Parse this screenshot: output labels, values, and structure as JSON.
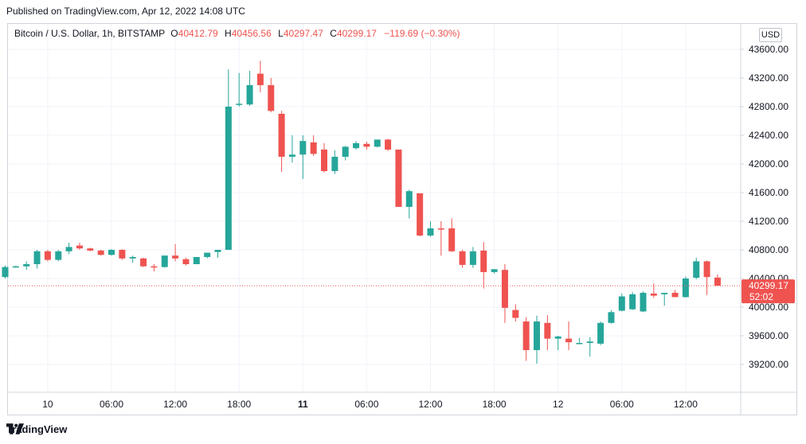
{
  "published_text": "Published on TradingView.com, Apr 12, 2022 14:08 UTC",
  "brand": "TradingView",
  "legend": {
    "symbol": "Bitcoin / U.S. Dollar, 1h, BITSTAMP",
    "o_label": "O",
    "o_value": "40412.79",
    "h_label": "H",
    "h_value": "40456.56",
    "l_label": "L",
    "l_value": "40297.47",
    "c_label": "C",
    "c_value": "40299.17",
    "change": "−119.69 (−0.30%)"
  },
  "currency_badge": "USD",
  "last_price_label": "40299.17",
  "countdown_label": "52:02",
  "colors": {
    "up": "#26a69a",
    "down": "#ef5350",
    "grid": "#f0f3fa",
    "axis_text": "#131722"
  },
  "chart_data": {
    "type": "candlestick",
    "title": "Bitcoin / U.S. Dollar, 1h, BITSTAMP",
    "ylim": [
      38800,
      43900
    ],
    "y_ticks": [
      "43600.00",
      "43200.00",
      "42800.00",
      "42400.00",
      "42000.00",
      "41600.00",
      "41200.00",
      "40800.00",
      "40400.00",
      "40000.00",
      "39600.00",
      "39200.00"
    ],
    "x_tick_labels": [
      "10",
      "06:00",
      "12:00",
      "18:00",
      "11",
      "06:00",
      "12:00",
      "18:00",
      "12",
      "06:00",
      "12:00"
    ],
    "x_tick_bold": [
      false,
      false,
      false,
      false,
      true,
      false,
      false,
      false,
      false,
      false,
      false
    ],
    "x_tick_bar_index": [
      4,
      10,
      16,
      22,
      28,
      34,
      40,
      46,
      52,
      58,
      64
    ],
    "last_price": 40299.17,
    "candles": [
      {
        "o": 40420,
        "h": 40580,
        "l": 40400,
        "c": 40560
      },
      {
        "o": 40560,
        "h": 40580,
        "l": 40550,
        "c": 40570
      },
      {
        "o": 40570,
        "h": 40640,
        "l": 40520,
        "c": 40600
      },
      {
        "o": 40600,
        "h": 40800,
        "l": 40540,
        "c": 40780
      },
      {
        "o": 40780,
        "h": 40800,
        "l": 40640,
        "c": 40660
      },
      {
        "o": 40660,
        "h": 40800,
        "l": 40640,
        "c": 40780
      },
      {
        "o": 40780,
        "h": 40900,
        "l": 40740,
        "c": 40840
      },
      {
        "o": 40860,
        "h": 40900,
        "l": 40800,
        "c": 40820
      },
      {
        "o": 40820,
        "h": 40830,
        "l": 40780,
        "c": 40790
      },
      {
        "o": 40790,
        "h": 40800,
        "l": 40720,
        "c": 40730
      },
      {
        "o": 40730,
        "h": 40810,
        "l": 40720,
        "c": 40800
      },
      {
        "o": 40800,
        "h": 40810,
        "l": 40660,
        "c": 40680
      },
      {
        "o": 40680,
        "h": 40720,
        "l": 40620,
        "c": 40700
      },
      {
        "o": 40680,
        "h": 40690,
        "l": 40560,
        "c": 40570
      },
      {
        "o": 40570,
        "h": 40600,
        "l": 40500,
        "c": 40560
      },
      {
        "o": 40560,
        "h": 40720,
        "l": 40550,
        "c": 40720
      },
      {
        "o": 40720,
        "h": 40880,
        "l": 40640,
        "c": 40680
      },
      {
        "o": 40670,
        "h": 40690,
        "l": 40580,
        "c": 40600
      },
      {
        "o": 40600,
        "h": 40700,
        "l": 40600,
        "c": 40700
      },
      {
        "o": 40700,
        "h": 40760,
        "l": 40680,
        "c": 40760
      },
      {
        "o": 40770,
        "h": 40800,
        "l": 40690,
        "c": 40800
      },
      {
        "o": 40800,
        "h": 43320,
        "l": 40800,
        "c": 42800
      },
      {
        "o": 42830,
        "h": 43270,
        "l": 42800,
        "c": 42840
      },
      {
        "o": 42830,
        "h": 43300,
        "l": 42810,
        "c": 43100
      },
      {
        "o": 43260,
        "h": 43440,
        "l": 43000,
        "c": 43100
      },
      {
        "o": 43100,
        "h": 43200,
        "l": 42720,
        "c": 42740
      },
      {
        "o": 42700,
        "h": 42740,
        "l": 41890,
        "c": 42100
      },
      {
        "o": 42100,
        "h": 42400,
        "l": 42020,
        "c": 42130
      },
      {
        "o": 42130,
        "h": 42400,
        "l": 41790,
        "c": 42320
      },
      {
        "o": 42300,
        "h": 42400,
        "l": 42110,
        "c": 42140
      },
      {
        "o": 42200,
        "h": 42290,
        "l": 41880,
        "c": 41900
      },
      {
        "o": 41900,
        "h": 42190,
        "l": 41860,
        "c": 42100
      },
      {
        "o": 42100,
        "h": 42250,
        "l": 42050,
        "c": 42240
      },
      {
        "o": 42220,
        "h": 42320,
        "l": 42200,
        "c": 42290
      },
      {
        "o": 42280,
        "h": 42310,
        "l": 42200,
        "c": 42240
      },
      {
        "o": 42240,
        "h": 42340,
        "l": 42230,
        "c": 42340
      },
      {
        "o": 42340,
        "h": 42350,
        "l": 42180,
        "c": 42200
      },
      {
        "o": 42200,
        "h": 42200,
        "l": 41400,
        "c": 41400
      },
      {
        "o": 41400,
        "h": 41640,
        "l": 41240,
        "c": 41620
      },
      {
        "o": 41590,
        "h": 41590,
        "l": 40990,
        "c": 41000
      },
      {
        "o": 41000,
        "h": 41200,
        "l": 40980,
        "c": 41100
      },
      {
        "o": 41100,
        "h": 41200,
        "l": 40720,
        "c": 41090
      },
      {
        "o": 41100,
        "h": 41240,
        "l": 40770,
        "c": 40780
      },
      {
        "o": 40780,
        "h": 40800,
        "l": 40550,
        "c": 40590
      },
      {
        "o": 40590,
        "h": 40840,
        "l": 40550,
        "c": 40780
      },
      {
        "o": 40790,
        "h": 40910,
        "l": 40260,
        "c": 40490
      },
      {
        "o": 40490,
        "h": 40520,
        "l": 40470,
        "c": 40530
      },
      {
        "o": 40520,
        "h": 40600,
        "l": 39780,
        "c": 39990
      },
      {
        "o": 39960,
        "h": 40040,
        "l": 39800,
        "c": 39850
      },
      {
        "o": 39800,
        "h": 39860,
        "l": 39250,
        "c": 39400
      },
      {
        "o": 39400,
        "h": 39880,
        "l": 39210,
        "c": 39800
      },
      {
        "o": 39780,
        "h": 39890,
        "l": 39400,
        "c": 39560
      },
      {
        "o": 39560,
        "h": 39600,
        "l": 39400,
        "c": 39590
      },
      {
        "o": 39560,
        "h": 39800,
        "l": 39400,
        "c": 39510
      },
      {
        "o": 39500,
        "h": 39570,
        "l": 39490,
        "c": 39500
      },
      {
        "o": 39500,
        "h": 39580,
        "l": 39310,
        "c": 39520
      },
      {
        "o": 39490,
        "h": 39800,
        "l": 39470,
        "c": 39780
      },
      {
        "o": 39780,
        "h": 39960,
        "l": 39770,
        "c": 39930
      },
      {
        "o": 39950,
        "h": 40190,
        "l": 39940,
        "c": 40150
      },
      {
        "o": 39970,
        "h": 40210,
        "l": 39960,
        "c": 40180
      },
      {
        "o": 39940,
        "h": 40220,
        "l": 39930,
        "c": 40200
      },
      {
        "o": 40190,
        "h": 40330,
        "l": 40130,
        "c": 40160
      },
      {
        "o": 40180,
        "h": 40200,
        "l": 40020,
        "c": 40200
      },
      {
        "o": 40200,
        "h": 40240,
        "l": 40140,
        "c": 40140
      },
      {
        "o": 40140,
        "h": 40430,
        "l": 40130,
        "c": 40400
      },
      {
        "o": 40410,
        "h": 40690,
        "l": 40390,
        "c": 40640
      },
      {
        "o": 40640,
        "h": 40650,
        "l": 40170,
        "c": 40420
      },
      {
        "o": 40412.79,
        "h": 40456.56,
        "l": 40297.47,
        "c": 40299.17
      }
    ]
  }
}
